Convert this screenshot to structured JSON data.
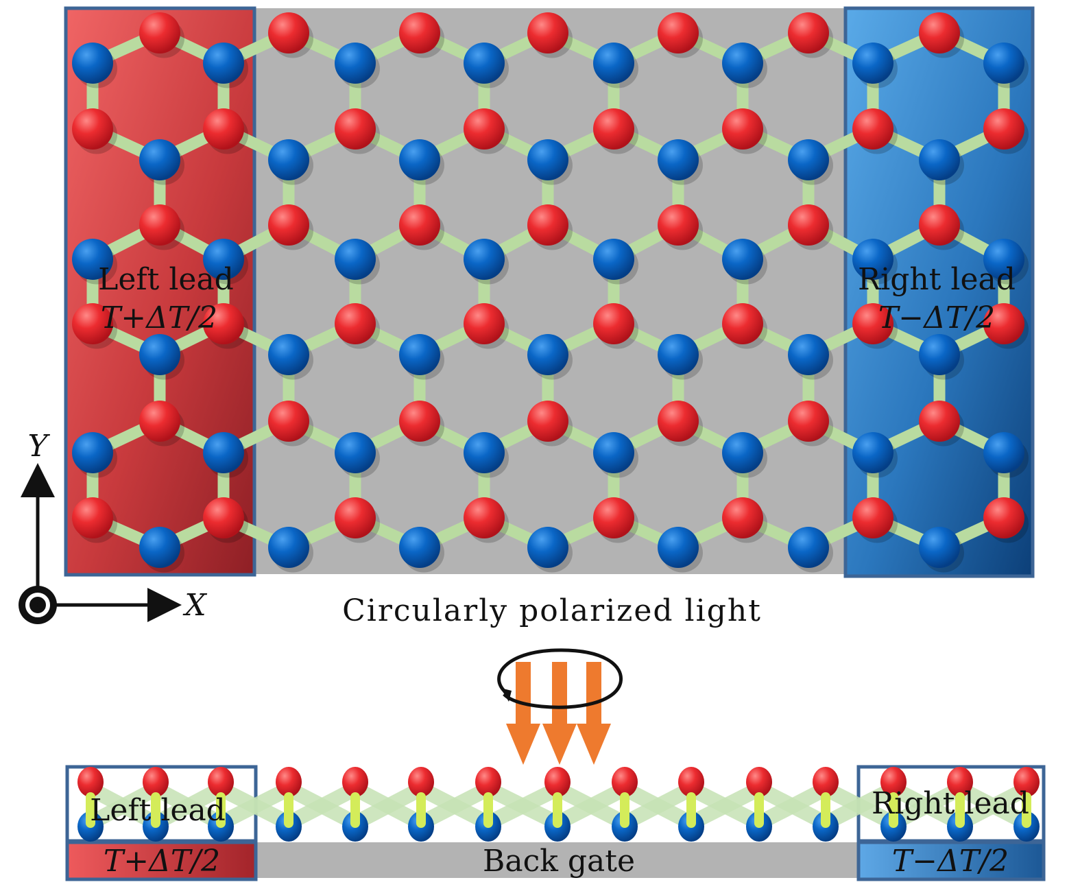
{
  "top_view": {
    "left_lead_label": "Left lead",
    "left_lead_temp": "T+ΔT/2",
    "right_lead_label": "Right lead",
    "right_lead_temp": "T−ΔT/2"
  },
  "axes": {
    "y_label": "Y",
    "x_label": "X"
  },
  "light_label": "Circularly polarized light",
  "side_view": {
    "left_lead_label": "Left lead",
    "left_lead_temp": "T+ΔT/2",
    "right_lead_label": "Right lead",
    "right_lead_temp": "T−ΔT/2",
    "gate_label": "Back gate"
  },
  "colors": {
    "atom_a": "#e8202a",
    "atom_b": "#0a64c0",
    "bond": "#b9dba0",
    "scatter_region": "#b3b3b3",
    "left_lead": "#c8363a",
    "right_lead": "#2f7ec4",
    "lead_border": "#3d6596",
    "light_arrows": "#ee7a2e"
  }
}
